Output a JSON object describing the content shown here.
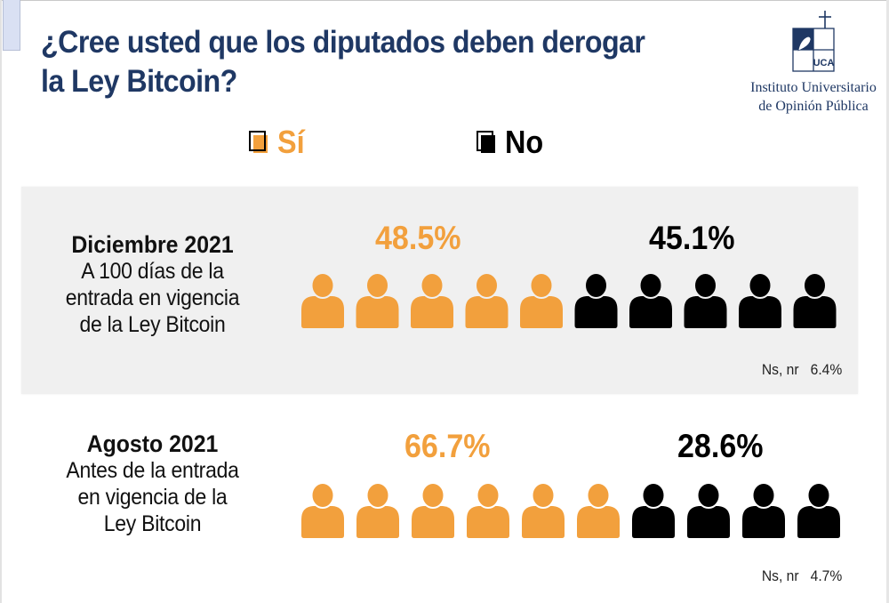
{
  "title": "¿Cree usted que los diputados deben derogar la Ley Bitcoin?",
  "title_lines": [
    "¿Cree usted que los diputados deben derogar",
    "la Ley Bitcoin?"
  ],
  "logo": {
    "icon": "uca-logo-icon",
    "mark_text": "UCA",
    "line1": "Instituto Universitario",
    "line2": "de Opinión Pública"
  },
  "legend": [
    {
      "label": "Sí",
      "color": "#F2A03D"
    },
    {
      "label": "No",
      "color": "#000000"
    }
  ],
  "colors": {
    "si": "#F2A03D",
    "no": "#000000",
    "title": "#1F3864",
    "panel": "#F0F0F0"
  },
  "chart_data": {
    "type": "pictogram",
    "title": "¿Cree usted que los diputados deben derogar la Ley Bitcoin?",
    "series_names": [
      "Sí",
      "No",
      "Ns, nr"
    ],
    "icons_per_row": 10,
    "rows": [
      {
        "period": "Diciembre 2021",
        "description": [
          "A 100 días de la",
          "entrada en vigencia",
          "de la Ley Bitcoin"
        ],
        "si_pct": 48.5,
        "si_label": "48.5%",
        "no_pct": 45.1,
        "no_label": "45.1%",
        "ns_label": "Ns, nr",
        "ns_pct": 6.4,
        "ns_value": "6.4%",
        "si_icons": 5,
        "no_icons": 5
      },
      {
        "period": "Agosto 2021",
        "description": [
          "Antes de la entrada",
          "en vigencia de la",
          "Ley Bitcoin"
        ],
        "si_pct": 66.7,
        "si_label": "66.7%",
        "no_pct": 28.6,
        "no_label": "28.6%",
        "ns_label": "Ns, nr",
        "ns_pct": 4.7,
        "ns_value": "4.7%",
        "si_icons": 6,
        "no_icons": 4
      }
    ]
  }
}
